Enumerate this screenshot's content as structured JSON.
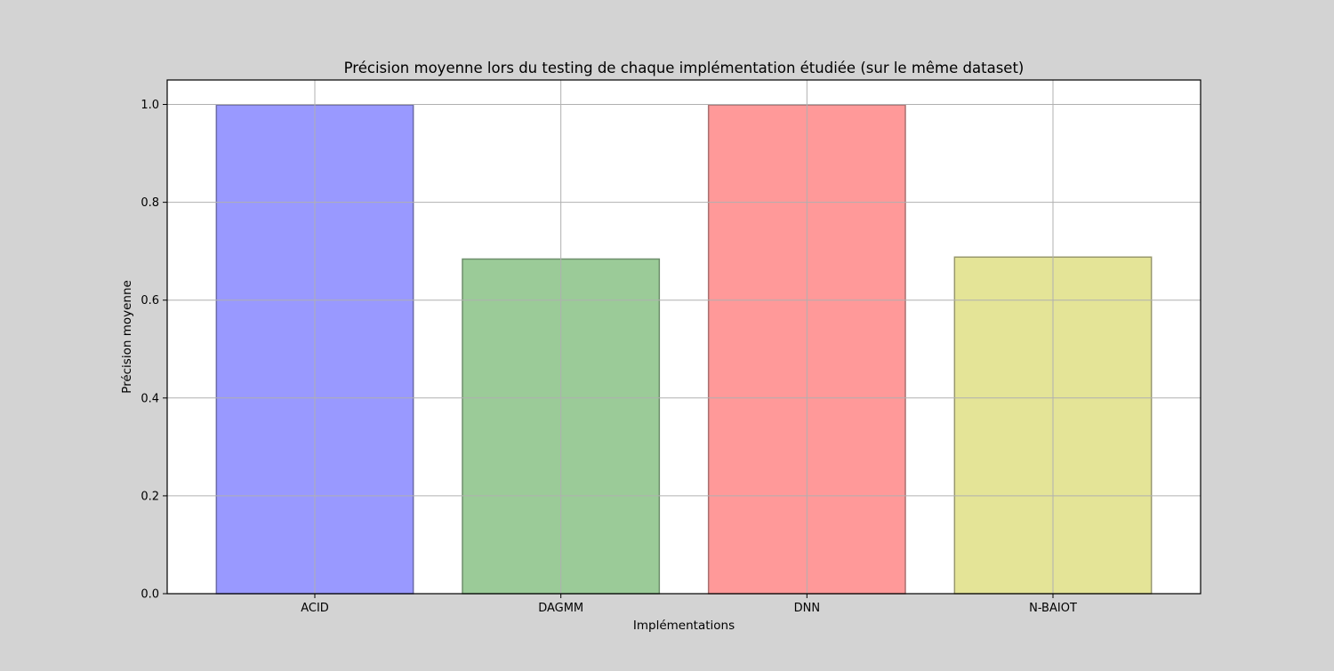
{
  "chart_data": {
    "type": "bar",
    "title": "Précision moyenne lors du testing de chaque implémentation étudiée (sur le même dataset)",
    "xlabel": "Implémentations",
    "ylabel": "Précision moyenne",
    "categories": [
      "ACID",
      "DAGMM",
      "DNN",
      "N-BAIOT"
    ],
    "values": [
      0.999,
      0.684,
      0.999,
      0.688
    ],
    "colors": [
      "#9999ff",
      "#9bcb98",
      "#ff9999",
      "#e4e497"
    ],
    "edge_colors": [
      "#6a6aa8",
      "#6e8e6c",
      "#a87070",
      "#98986c"
    ],
    "ylim": [
      0,
      1.05
    ],
    "yticks": [
      "0.0",
      "0.2",
      "0.4",
      "0.6",
      "0.8",
      "1.0"
    ],
    "grid": true,
    "legend": "none"
  }
}
